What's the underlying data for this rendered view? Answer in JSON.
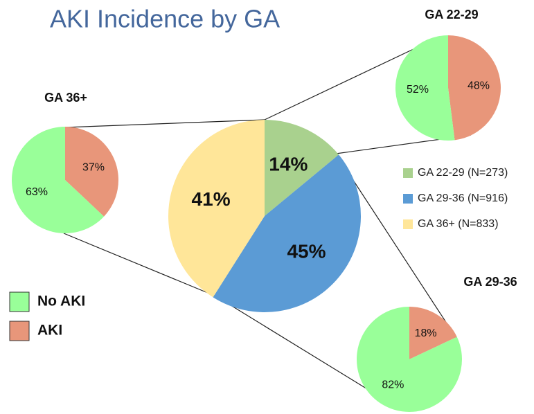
{
  "chart_data": [
    {
      "type": "pie",
      "title": "AKI Incidence by GA",
      "categories": [
        "GA 22-29 (N=273)",
        "GA 29-36 (N=916)",
        "GA 36+ (N=833)"
      ],
      "values": [
        14,
        45,
        41
      ],
      "value_labels": [
        "14%",
        "45%",
        "41%"
      ],
      "colors": [
        "#a9d18e",
        "#5b9bd5",
        "#ffe699"
      ]
    },
    {
      "type": "pie-group",
      "categories": [
        "No AKI",
        "AKI"
      ],
      "colors": [
        "#99ff99",
        "#e8967a"
      ],
      "pies": [
        {
          "title": "GA 22-29",
          "values": [
            52,
            48
          ],
          "value_labels": [
            "52%",
            "48%"
          ]
        },
        {
          "title": "GA 29-36",
          "values": [
            82,
            18
          ],
          "value_labels": [
            "82%",
            "18%"
          ]
        },
        {
          "title": "GA 36+",
          "values": [
            63,
            37
          ],
          "value_labels": [
            "63%",
            "37%"
          ]
        }
      ]
    }
  ]
}
